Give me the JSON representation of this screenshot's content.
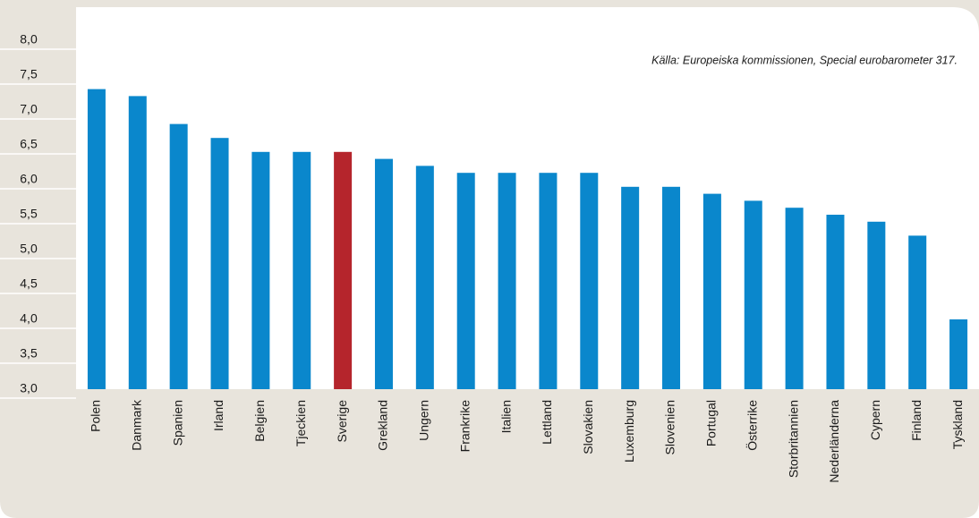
{
  "chart_data": {
    "type": "bar",
    "annotation": "Källa: Europeiska kommissionen, Special eurobarometer 317.",
    "categories": [
      "Polen",
      "Danmark",
      "Spanien",
      "Irland",
      "Belgien",
      "Tjeckien",
      "Sverige",
      "Grekland",
      "Ungern",
      "Frankrike",
      "Italien",
      "Lettland",
      "Slovakien",
      "Luxemburg",
      "Slovenien",
      "Portugal",
      "Österrike",
      "Storbritannien",
      "Nederländerna",
      "Cypern",
      "Finland",
      "Tyskland"
    ],
    "values": [
      7.3,
      7.2,
      6.8,
      6.6,
      6.4,
      6.4,
      6.4,
      6.3,
      6.2,
      6.1,
      6.1,
      6.1,
      6.1,
      5.9,
      5.9,
      5.8,
      5.7,
      5.6,
      5.5,
      5.4,
      5.2,
      4.0
    ],
    "colors": [
      "#0a87cc",
      "#0a87cc",
      "#0a87cc",
      "#0a87cc",
      "#0a87cc",
      "#0a87cc",
      "#b5252c",
      "#0a87cc",
      "#0a87cc",
      "#0a87cc",
      "#0a87cc",
      "#0a87cc",
      "#0a87cc",
      "#0a87cc",
      "#0a87cc",
      "#0a87cc",
      "#0a87cc",
      "#0a87cc",
      "#0a87cc",
      "#0a87cc",
      "#0a87cc",
      "#0a87cc"
    ],
    "ylim": [
      3.0,
      8.0
    ],
    "yticks": [
      {
        "value": 3.0,
        "label": "3,0"
      },
      {
        "value": 3.5,
        "label": "3,5"
      },
      {
        "value": 4.0,
        "label": "4,0"
      },
      {
        "value": 4.5,
        "label": "4,5"
      },
      {
        "value": 5.0,
        "label": "5,0"
      },
      {
        "value": 5.5,
        "label": "5,5"
      },
      {
        "value": 6.0,
        "label": "6,0"
      },
      {
        "value": 6.5,
        "label": "6,5"
      },
      {
        "value": 7.0,
        "label": "7,0"
      },
      {
        "value": 7.5,
        "label": "7,5"
      },
      {
        "value": 8.0,
        "label": "8,0"
      }
    ]
  }
}
